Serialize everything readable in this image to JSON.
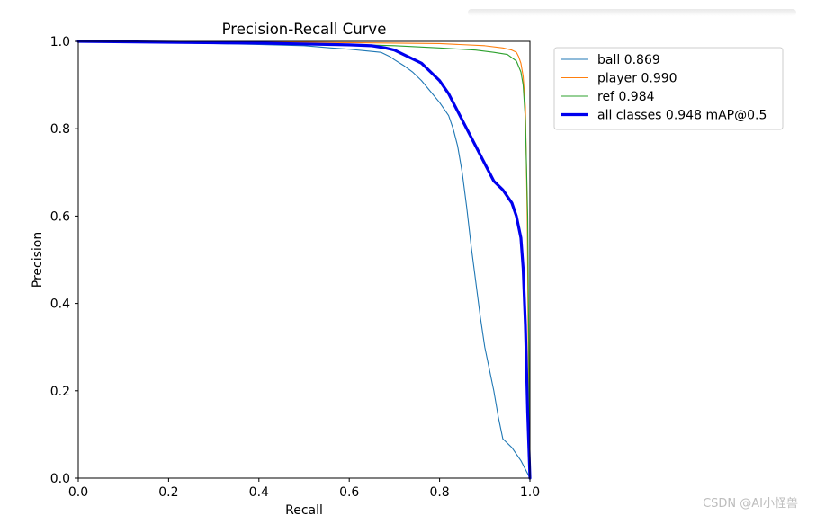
{
  "chart_data": {
    "type": "line",
    "title": "Precision-Recall Curve",
    "xlabel": "Recall",
    "ylabel": "Precision",
    "xlim": [
      0,
      1
    ],
    "ylim": [
      0,
      1
    ],
    "xticks": [
      "0.0",
      "0.2",
      "0.4",
      "0.6",
      "0.8",
      "1.0"
    ],
    "yticks": [
      "0.0",
      "0.2",
      "0.4",
      "0.6",
      "0.8",
      "1.0"
    ],
    "legend_position": "top-right outside",
    "series": [
      {
        "name": "ball 0.869",
        "color": "#1f77b4",
        "linewidth": "thin",
        "points": [
          [
            0.0,
            1.0
          ],
          [
            0.1,
            0.998
          ],
          [
            0.2,
            0.997
          ],
          [
            0.3,
            0.995
          ],
          [
            0.4,
            0.993
          ],
          [
            0.5,
            0.99
          ],
          [
            0.56,
            0.985
          ],
          [
            0.6,
            0.982
          ],
          [
            0.64,
            0.978
          ],
          [
            0.67,
            0.975
          ],
          [
            0.69,
            0.965
          ],
          [
            0.7,
            0.958
          ],
          [
            0.72,
            0.945
          ],
          [
            0.74,
            0.93
          ],
          [
            0.76,
            0.91
          ],
          [
            0.78,
            0.885
          ],
          [
            0.8,
            0.86
          ],
          [
            0.82,
            0.83
          ],
          [
            0.83,
            0.8
          ],
          [
            0.84,
            0.76
          ],
          [
            0.85,
            0.7
          ],
          [
            0.86,
            0.62
          ],
          [
            0.87,
            0.53
          ],
          [
            0.88,
            0.45
          ],
          [
            0.89,
            0.37
          ],
          [
            0.9,
            0.3
          ],
          [
            0.91,
            0.25
          ],
          [
            0.92,
            0.2
          ],
          [
            0.93,
            0.14
          ],
          [
            0.94,
            0.09
          ],
          [
            0.96,
            0.07
          ],
          [
            0.98,
            0.04
          ],
          [
            1.0,
            0.0
          ]
        ]
      },
      {
        "name": "player 0.990",
        "color": "#ff7f0e",
        "linewidth": "thin",
        "points": [
          [
            0.0,
            1.0
          ],
          [
            0.2,
            1.0
          ],
          [
            0.4,
            0.999
          ],
          [
            0.6,
            0.997
          ],
          [
            0.7,
            0.996
          ],
          [
            0.8,
            0.995
          ],
          [
            0.9,
            0.99
          ],
          [
            0.94,
            0.985
          ],
          [
            0.96,
            0.98
          ],
          [
            0.97,
            0.975
          ],
          [
            0.975,
            0.965
          ],
          [
            0.98,
            0.95
          ],
          [
            0.985,
            0.92
          ],
          [
            0.99,
            0.85
          ],
          [
            0.994,
            0.6
          ],
          [
            0.998,
            0.1
          ],
          [
            1.0,
            0.0
          ]
        ]
      },
      {
        "name": "ref 0.984",
        "color": "#2ca02c",
        "linewidth": "thin",
        "points": [
          [
            0.0,
            1.0
          ],
          [
            0.2,
            0.999
          ],
          [
            0.4,
            0.997
          ],
          [
            0.6,
            0.993
          ],
          [
            0.7,
            0.99
          ],
          [
            0.8,
            0.985
          ],
          [
            0.88,
            0.98
          ],
          [
            0.92,
            0.975
          ],
          [
            0.95,
            0.97
          ],
          [
            0.97,
            0.955
          ],
          [
            0.98,
            0.93
          ],
          [
            0.985,
            0.9
          ],
          [
            0.99,
            0.82
          ],
          [
            0.995,
            0.6
          ],
          [
            1.0,
            0.0
          ]
        ]
      },
      {
        "name": "all classes 0.948 mAP@0.5",
        "color": "#0000ee",
        "linewidth": "thick",
        "points": [
          [
            0.0,
            1.0
          ],
          [
            0.2,
            0.998
          ],
          [
            0.4,
            0.996
          ],
          [
            0.55,
            0.993
          ],
          [
            0.6,
            0.992
          ],
          [
            0.65,
            0.99
          ],
          [
            0.68,
            0.985
          ],
          [
            0.7,
            0.98
          ],
          [
            0.72,
            0.97
          ],
          [
            0.74,
            0.96
          ],
          [
            0.76,
            0.95
          ],
          [
            0.78,
            0.93
          ],
          [
            0.8,
            0.91
          ],
          [
            0.82,
            0.88
          ],
          [
            0.84,
            0.84
          ],
          [
            0.86,
            0.8
          ],
          [
            0.88,
            0.76
          ],
          [
            0.9,
            0.72
          ],
          [
            0.92,
            0.68
          ],
          [
            0.94,
            0.66
          ],
          [
            0.96,
            0.63
          ],
          [
            0.97,
            0.6
          ],
          [
            0.98,
            0.55
          ],
          [
            0.985,
            0.48
          ],
          [
            0.99,
            0.35
          ],
          [
            0.995,
            0.15
          ],
          [
            1.0,
            0.0
          ]
        ]
      }
    ]
  },
  "watermark": "CSDN @AI小怪兽"
}
